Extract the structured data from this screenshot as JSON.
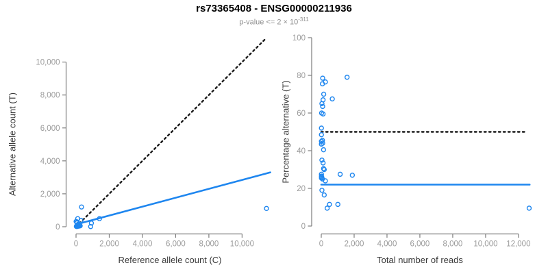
{
  "header": {
    "title": "rs73365408 - ENSG00000211936",
    "pvalue_prefix": "p-value <= 2 × 10",
    "pvalue_exponent": "-311"
  },
  "colors": {
    "accent_blue": "#1e86ef",
    "dotted_black": "#1a1a1a",
    "axis_line": "#7d7d7d",
    "tick_label": "#9b9b9b",
    "axis_title": "#3a3a3a",
    "subtitle_gray": "#8f8f8f"
  },
  "chart_data": [
    {
      "type": "scatter",
      "xlabel": "Reference allele count (C)",
      "ylabel": "Alternative allele count (T)",
      "x_ticks": [
        0,
        2000,
        4000,
        6000,
        8000,
        10000
      ],
      "y_ticks": [
        0,
        2000,
        4000,
        6000,
        8000,
        10000
      ],
      "xlim": [
        0,
        11700
      ],
      "ylim": [
        0,
        11500
      ],
      "grid": false,
      "legend": "none",
      "point_color": "#1e86ef",
      "points": [
        [
          20,
          20
        ],
        [
          40,
          60
        ],
        [
          60,
          15
        ],
        [
          80,
          100
        ],
        [
          100,
          40
        ],
        [
          120,
          140
        ],
        [
          140,
          80
        ],
        [
          160,
          35
        ],
        [
          190,
          170
        ],
        [
          220,
          100
        ],
        [
          250,
          55
        ],
        [
          60,
          230
        ],
        [
          35,
          300
        ],
        [
          5,
          320
        ],
        [
          100,
          490
        ],
        [
          300,
          390
        ],
        [
          330,
          1200
        ],
        [
          880,
          10
        ],
        [
          925,
          220
        ],
        [
          1410,
          490
        ],
        [
          11470,
          1110
        ]
      ],
      "lines": [
        {
          "name": "identity",
          "style": "dotted",
          "color": "#1a1a1a",
          "points": [
            [
              0,
              0
            ],
            [
              11480,
              11480
            ]
          ]
        },
        {
          "name": "fit",
          "style": "solid",
          "color": "#1e86ef",
          "points": [
            [
              0,
              140
            ],
            [
              11700,
              3300
            ]
          ]
        }
      ]
    },
    {
      "type": "scatter",
      "xlabel": "Total number of reads",
      "ylabel": "Percentage alternative (T)",
      "x_ticks": [
        0,
        2000,
        4000,
        6000,
        8000,
        10000,
        12000
      ],
      "y_ticks": [
        0,
        20,
        40,
        60,
        80,
        100
      ],
      "xlim": [
        0,
        12700
      ],
      "ylim": [
        0,
        100
      ],
      "grid": false,
      "legend": "none",
      "point_color": "#1e86ef",
      "points": [
        [
          85,
          78.5
        ],
        [
          250,
          76.5
        ],
        [
          70,
          75.5
        ],
        [
          1570,
          79
        ],
        [
          150,
          70
        ],
        [
          110,
          67
        ],
        [
          670,
          67.5
        ],
        [
          40,
          65
        ],
        [
          85,
          63.5
        ],
        [
          20,
          60
        ],
        [
          110,
          59.5
        ],
        [
          10,
          52
        ],
        [
          10,
          48.5
        ],
        [
          70,
          45.5
        ],
        [
          10,
          45
        ],
        [
          85,
          44
        ],
        [
          10,
          43.5
        ],
        [
          140,
          40.5
        ],
        [
          40,
          35
        ],
        [
          110,
          33.5
        ],
        [
          140,
          30.5
        ],
        [
          180,
          30
        ],
        [
          10,
          27.5
        ],
        [
          1150,
          27.5
        ],
        [
          1890,
          27
        ],
        [
          30,
          26
        ],
        [
          10,
          26.5
        ],
        [
          10,
          25.5
        ],
        [
          70,
          25
        ],
        [
          250,
          24
        ],
        [
          40,
          19
        ],
        [
          180,
          16.5
        ],
        [
          500,
          11.5
        ],
        [
          1010,
          11.5
        ],
        [
          360,
          9.5
        ],
        [
          12650,
          9.5
        ]
      ],
      "lines": [
        {
          "name": "expected",
          "style": "dotted",
          "color": "#1a1a1a",
          "points": [
            [
              0,
              50
            ],
            [
              12500,
              50
            ]
          ]
        },
        {
          "name": "fit",
          "style": "solid",
          "color": "#1e86ef",
          "points": [
            [
              0,
              22
            ],
            [
              12680,
              22
            ]
          ]
        }
      ]
    }
  ]
}
